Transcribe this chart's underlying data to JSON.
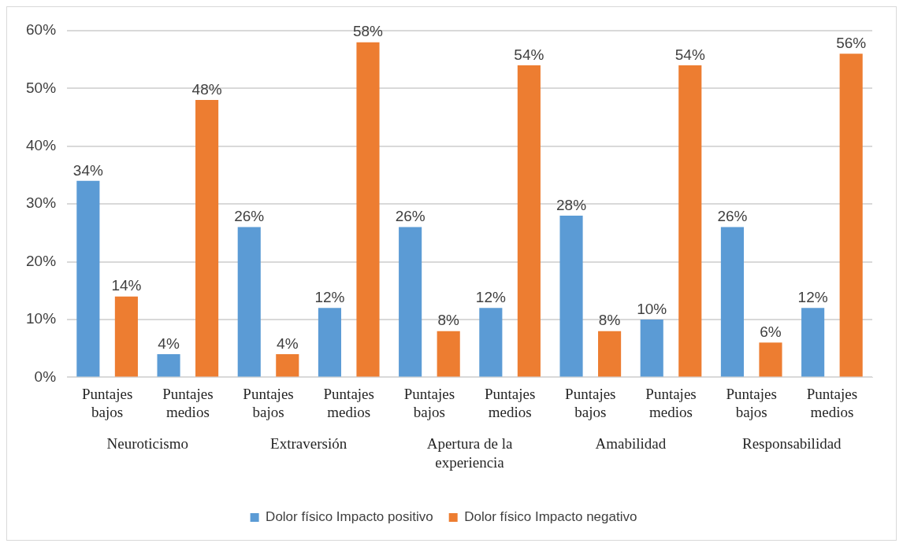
{
  "chart_data": {
    "type": "bar",
    "categories": [
      "Puntajes bajos",
      "Puntajes medios",
      "Puntajes bajos",
      "Puntajes medios",
      "Puntajes bajos",
      "Puntajes medios",
      "Puntajes bajos",
      "Puntajes medios",
      "Puntajes bajos",
      "Puntajes medios"
    ],
    "series": [
      {
        "name": "Dolor físico Impacto positivo",
        "color": "#5b9bd5",
        "values": [
          34,
          4,
          26,
          12,
          26,
          12,
          28,
          10,
          26,
          12
        ],
        "value_labels": [
          "34%",
          "4%",
          "26%",
          "12%",
          "26%",
          "12%",
          "28%",
          "10%",
          "26%",
          "12%"
        ]
      },
      {
        "name": "Dolor físico Impacto negativo",
        "color": "#ed7d31",
        "values": [
          14,
          48,
          4,
          58,
          8,
          54,
          8,
          54,
          6,
          56
        ],
        "value_labels": [
          "14%",
          "48%",
          "4%",
          "58%",
          "8%",
          "54%",
          "8%",
          "54%",
          "6%",
          "56%"
        ]
      }
    ],
    "annotations": [
      "Neuroticismo",
      "Extraversión",
      "Apertura de la experiencia",
      "Amabilidad",
      "Responsabilidad"
    ],
    "ylim": [
      0,
      60
    ],
    "yticks": [
      {
        "value": 0,
        "label": "0%"
      },
      {
        "value": 10,
        "label": "10%"
      },
      {
        "value": 20,
        "label": "20%"
      },
      {
        "value": 30,
        "label": "30%"
      },
      {
        "value": 40,
        "label": "40%"
      },
      {
        "value": 50,
        "label": "50%"
      },
      {
        "value": 60,
        "label": "60%"
      }
    ],
    "grid": "y",
    "legend": "bottom"
  }
}
